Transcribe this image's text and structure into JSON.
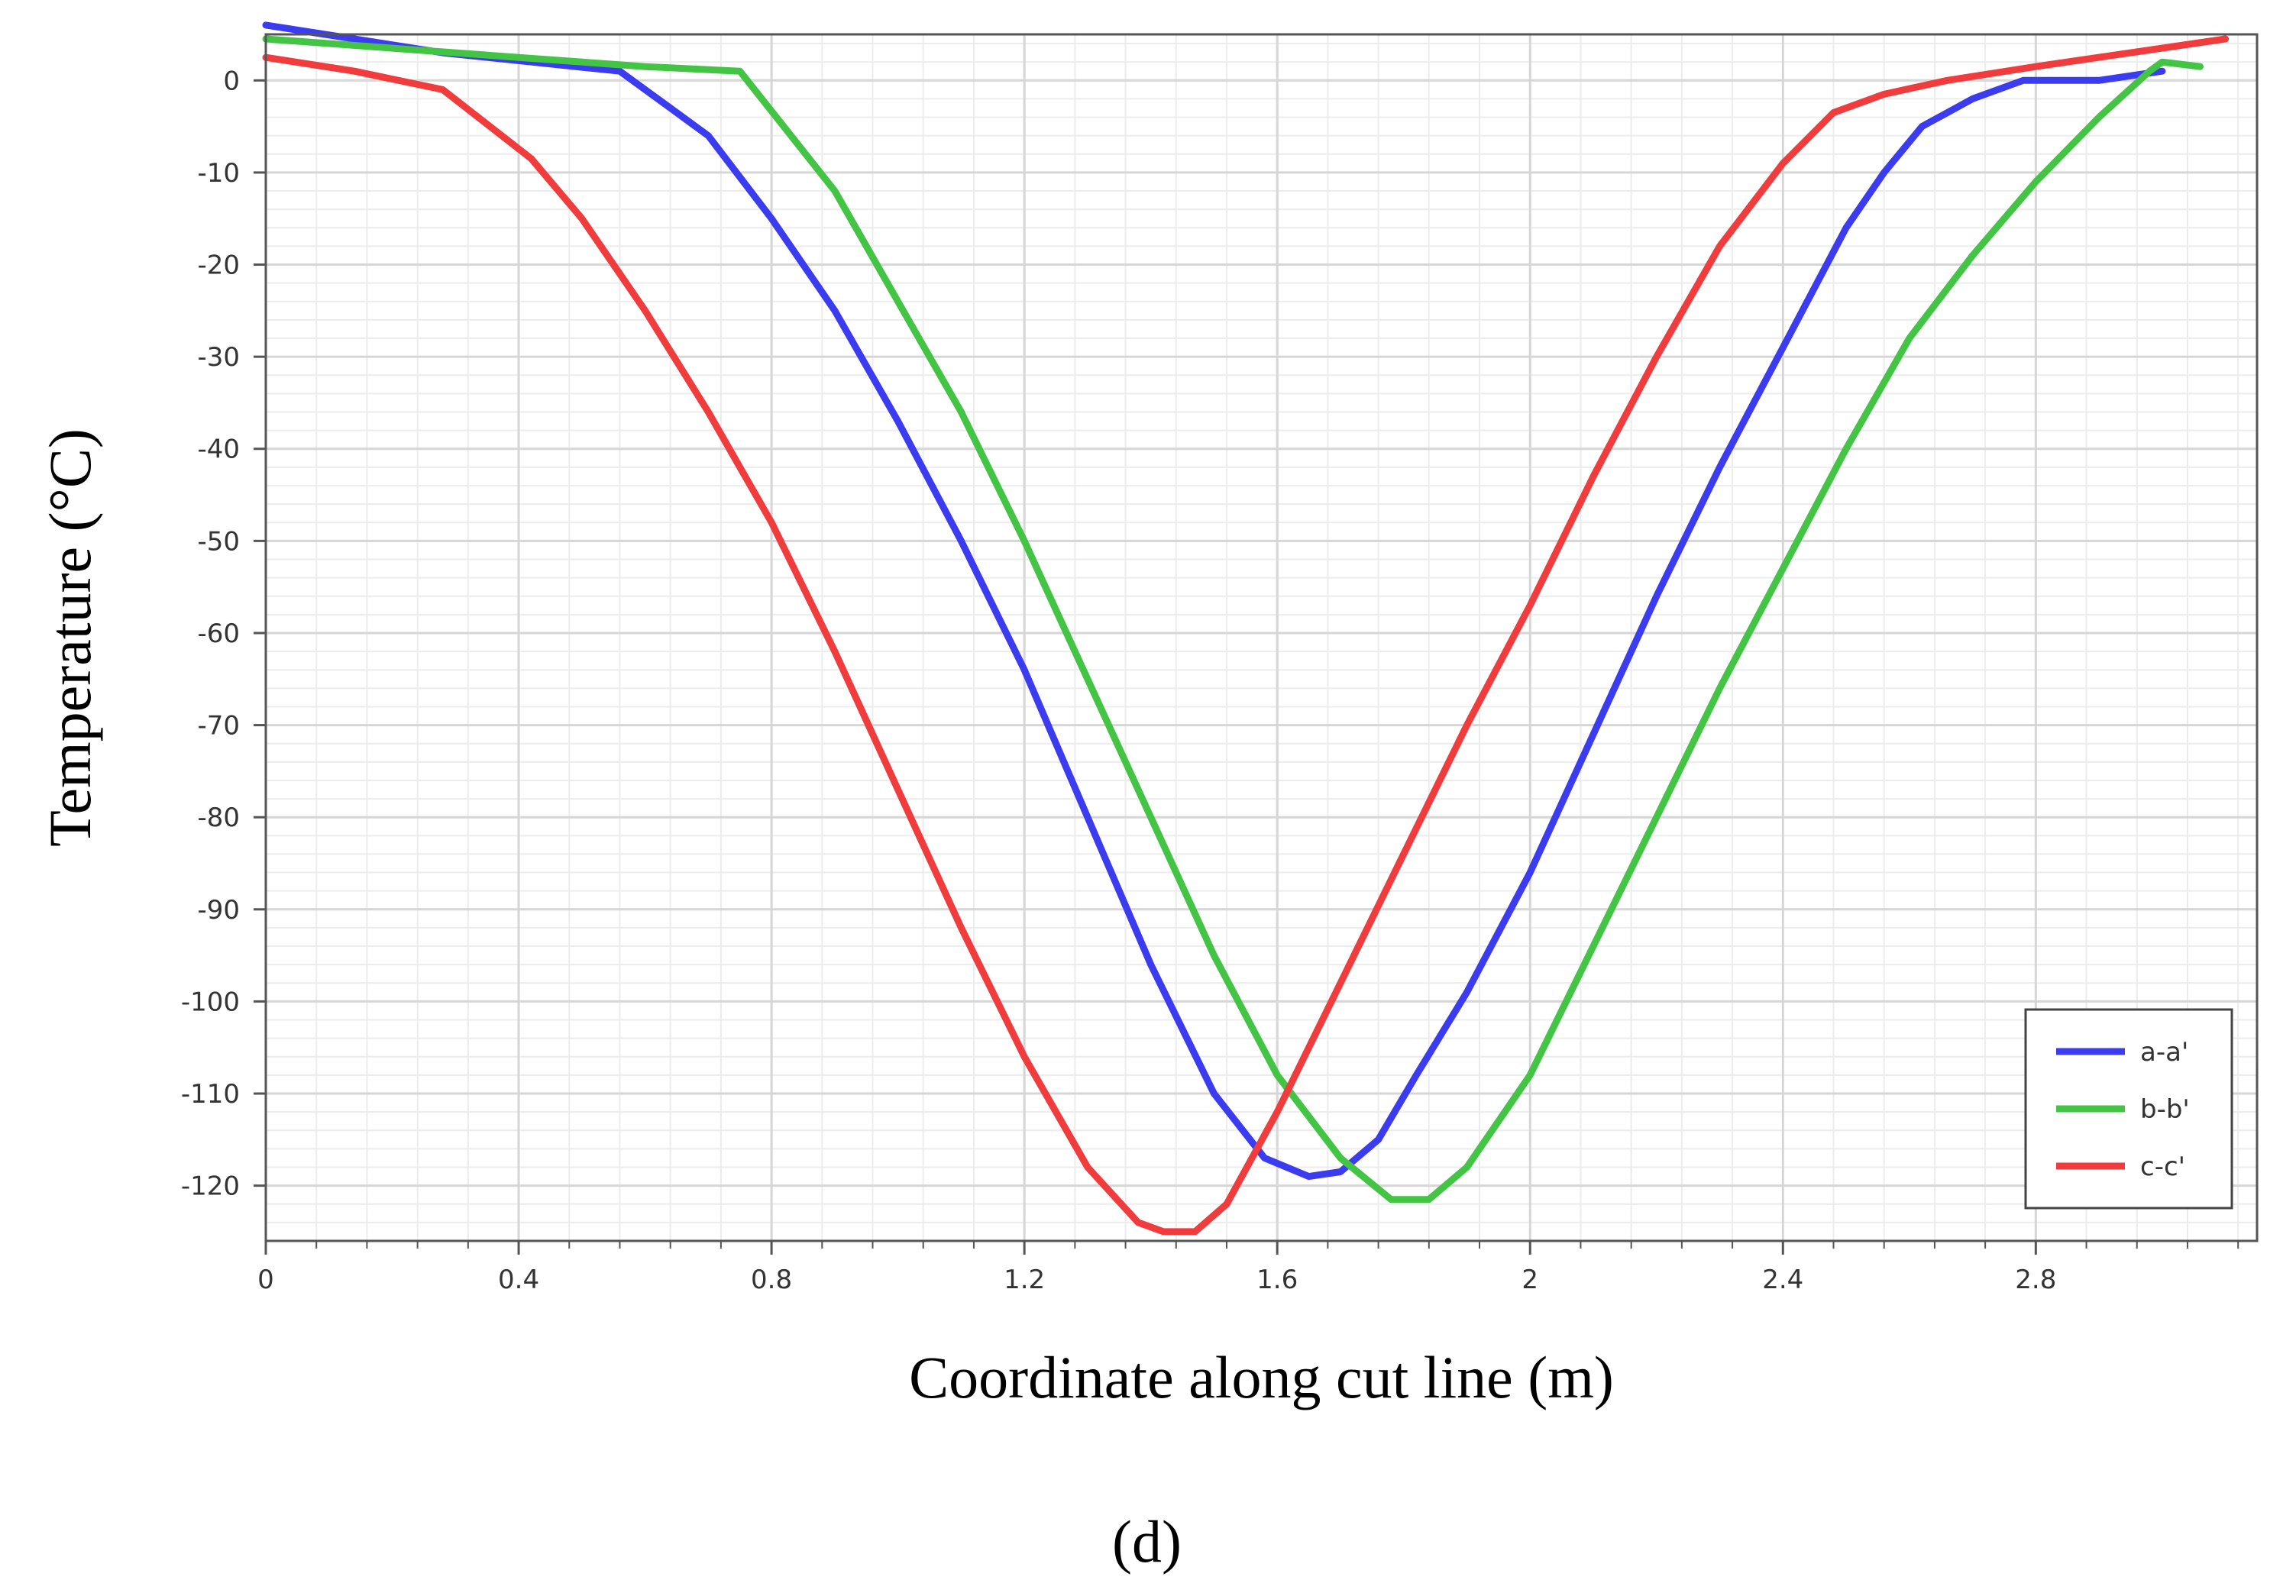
{
  "chart_data": {
    "type": "line",
    "xlabel": "Coordinate along cut line (m)",
    "ylabel": "Temperature (°C)",
    "xlim": [
      0,
      3.15
    ],
    "ylim": [
      -126,
      5
    ],
    "x_ticks": [
      0,
      0.4,
      0.8,
      1.2,
      1.6,
      2.0,
      2.4,
      2.8
    ],
    "x_tick_labels": [
      "0",
      "0.4",
      "0.8",
      "1.2",
      "1.6",
      "2",
      "2.4",
      "2.8"
    ],
    "y_ticks": [
      0,
      -10,
      -20,
      -30,
      -40,
      -50,
      -60,
      -70,
      -80,
      -90,
      -100,
      -110,
      -120
    ],
    "y_tick_labels": [
      "0",
      "-10",
      "-20",
      "-30",
      "-40",
      "-50",
      "-60",
      "-70",
      "-80",
      "-90",
      "-100",
      "-110",
      "-120"
    ],
    "grid": true,
    "legend_position": "bottom-right",
    "caption": "(d)",
    "series": [
      {
        "name": "a-a'",
        "color": "#3b3bf0",
        "points": [
          [
            0,
            6
          ],
          [
            0.14,
            4.5
          ],
          [
            0.28,
            3
          ],
          [
            0.42,
            2
          ],
          [
            0.56,
            1
          ],
          [
            0.7,
            -6
          ],
          [
            0.8,
            -15
          ],
          [
            0.9,
            -25
          ],
          [
            1.0,
            -37
          ],
          [
            1.1,
            -50
          ],
          [
            1.2,
            -64
          ],
          [
            1.3,
            -80
          ],
          [
            1.4,
            -96
          ],
          [
            1.5,
            -110
          ],
          [
            1.58,
            -117
          ],
          [
            1.65,
            -119
          ],
          [
            1.7,
            -118.5
          ],
          [
            1.76,
            -115
          ],
          [
            1.82,
            -108
          ],
          [
            1.9,
            -99
          ],
          [
            2.0,
            -86
          ],
          [
            2.1,
            -71
          ],
          [
            2.2,
            -56
          ],
          [
            2.3,
            -42
          ],
          [
            2.4,
            -29
          ],
          [
            2.5,
            -16
          ],
          [
            2.56,
            -10
          ],
          [
            2.62,
            -5
          ],
          [
            2.7,
            -2
          ],
          [
            2.78,
            0
          ],
          [
            2.9,
            0
          ],
          [
            3.0,
            1
          ]
        ]
      },
      {
        "name": "b-b'",
        "color": "#44c444",
        "points": [
          [
            0,
            4.5
          ],
          [
            0.2,
            3.5
          ],
          [
            0.4,
            2.5
          ],
          [
            0.6,
            1.5
          ],
          [
            0.75,
            1
          ],
          [
            0.9,
            -12
          ],
          [
            1.0,
            -24
          ],
          [
            1.1,
            -36
          ],
          [
            1.2,
            -50
          ],
          [
            1.3,
            -65
          ],
          [
            1.4,
            -80
          ],
          [
            1.5,
            -95
          ],
          [
            1.6,
            -108
          ],
          [
            1.7,
            -117
          ],
          [
            1.78,
            -121.5
          ],
          [
            1.84,
            -121.5
          ],
          [
            1.9,
            -118
          ],
          [
            2.0,
            -108
          ],
          [
            2.1,
            -94
          ],
          [
            2.2,
            -80
          ],
          [
            2.3,
            -66
          ],
          [
            2.4,
            -53
          ],
          [
            2.5,
            -40
          ],
          [
            2.6,
            -28
          ],
          [
            2.7,
            -19
          ],
          [
            2.8,
            -11
          ],
          [
            2.9,
            -4
          ],
          [
            2.98,
            1
          ],
          [
            3.0,
            2
          ],
          [
            3.06,
            1.5
          ]
        ]
      },
      {
        "name": "c-c'",
        "color": "#f03c3c",
        "points": [
          [
            0,
            2.5
          ],
          [
            0.14,
            1
          ],
          [
            0.28,
            -1
          ],
          [
            0.42,
            -8.5
          ],
          [
            0.5,
            -15
          ],
          [
            0.6,
            -25
          ],
          [
            0.7,
            -36
          ],
          [
            0.8,
            -48
          ],
          [
            0.9,
            -62
          ],
          [
            1.0,
            -77
          ],
          [
            1.1,
            -92
          ],
          [
            1.2,
            -106
          ],
          [
            1.3,
            -118
          ],
          [
            1.38,
            -124
          ],
          [
            1.42,
            -125
          ],
          [
            1.47,
            -125
          ],
          [
            1.52,
            -122
          ],
          [
            1.6,
            -112
          ],
          [
            1.7,
            -98
          ],
          [
            1.8,
            -84
          ],
          [
            1.9,
            -70
          ],
          [
            2.0,
            -57
          ],
          [
            2.1,
            -43
          ],
          [
            2.2,
            -30
          ],
          [
            2.3,
            -18
          ],
          [
            2.4,
            -9
          ],
          [
            2.48,
            -3.5
          ],
          [
            2.56,
            -1.5
          ],
          [
            2.66,
            0
          ],
          [
            2.8,
            1.5
          ],
          [
            2.95,
            3
          ],
          [
            3.1,
            4.5
          ]
        ]
      }
    ]
  }
}
